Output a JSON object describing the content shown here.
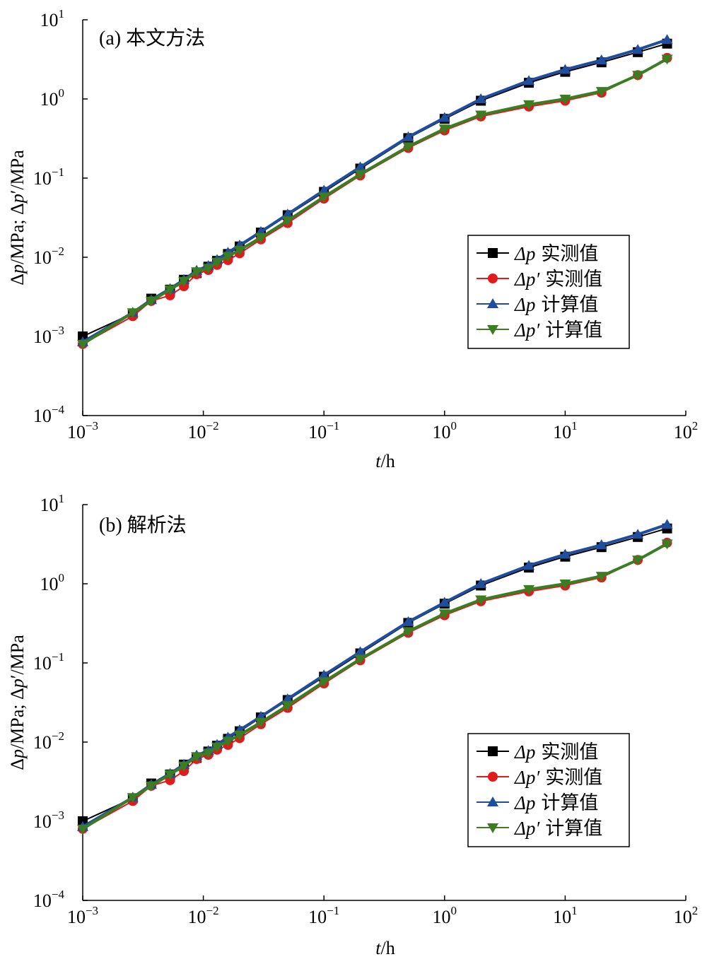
{
  "chart_data": [
    {
      "type": "scatter",
      "scale": {
        "x": "log",
        "y": "log"
      },
      "title": "(a) 本文方法",
      "xlabel": {
        "italic": "t",
        "rest": "/h"
      },
      "ylabel": {
        "parts": [
          "Δ",
          "p",
          "/MPa; Δ",
          "p",
          "′/MPa"
        ]
      },
      "xlim": [
        0.001,
        100
      ],
      "ylim": [
        0.0001,
        10
      ],
      "x_ticks": [
        {
          "base": "10",
          "exp": "−3"
        },
        {
          "base": "10",
          "exp": "−2"
        },
        {
          "base": "10",
          "exp": "−1"
        },
        {
          "base": "10",
          "exp": "0"
        },
        {
          "base": "10",
          "exp": "1"
        },
        {
          "base": "10",
          "exp": "2"
        }
      ],
      "y_ticks": [
        {
          "base": "10",
          "exp": "−4"
        },
        {
          "base": "10",
          "exp": "−3"
        },
        {
          "base": "10",
          "exp": "−2"
        },
        {
          "base": "10",
          "exp": "−1"
        },
        {
          "base": "10",
          "exp": "0"
        },
        {
          "base": "10",
          "exp": "1"
        }
      ],
      "legend_position": "lower-right",
      "series": [
        {
          "name": "Δp 实测值",
          "legend": {
            "math": "Δp",
            "label": "实测值"
          },
          "color": "#000000",
          "marker": "square",
          "x": [
            0.001,
            0.0026,
            0.0037,
            0.0053,
            0.0069,
            0.0088,
            0.011,
            0.013,
            0.016,
            0.02,
            0.03,
            0.05,
            0.1,
            0.2,
            0.5,
            1,
            2,
            5,
            10,
            20,
            40,
            70
          ],
          "y": [
            0.001,
            0.00195,
            0.003,
            0.0039,
            0.0052,
            0.0063,
            0.0076,
            0.009,
            0.011,
            0.0137,
            0.0205,
            0.034,
            0.067,
            0.132,
            0.32,
            0.56,
            0.95,
            1.6,
            2.2,
            2.9,
            3.9,
            5.0
          ]
        },
        {
          "name": "Δp′ 实测值",
          "legend": {
            "math": "Δp′",
            "label": "实测值"
          },
          "color": "#e31a1c",
          "marker": "circle",
          "x": [
            0.001,
            0.0026,
            0.0037,
            0.0053,
            0.0069,
            0.0088,
            0.011,
            0.013,
            0.016,
            0.02,
            0.03,
            0.05,
            0.1,
            0.2,
            0.5,
            1,
            2,
            5,
            10,
            20,
            40,
            70
          ],
          "y": [
            0.0008,
            0.0018,
            0.0028,
            0.0033,
            0.0043,
            0.0061,
            0.0069,
            0.008,
            0.0092,
            0.0112,
            0.0168,
            0.027,
            0.055,
            0.108,
            0.24,
            0.4,
            0.6,
            0.8,
            0.95,
            1.2,
            2.0,
            3.3
          ]
        },
        {
          "name": "Δp 计算值",
          "legend": {
            "math": "Δp",
            "label": "计算值"
          },
          "color": "#1f4e9e",
          "marker": "triangle-up",
          "x": [
            0.001,
            0.0026,
            0.0037,
            0.0053,
            0.0069,
            0.0088,
            0.011,
            0.013,
            0.016,
            0.02,
            0.03,
            0.05,
            0.1,
            0.2,
            0.5,
            1,
            2,
            5,
            10,
            20,
            40,
            70
          ],
          "y": [
            0.00085,
            0.002,
            0.0029,
            0.004,
            0.0052,
            0.0068,
            0.0078,
            0.0093,
            0.0115,
            0.0142,
            0.021,
            0.035,
            0.07,
            0.138,
            0.33,
            0.58,
            1.0,
            1.7,
            2.35,
            3.1,
            4.2,
            5.6
          ]
        },
        {
          "name": "Δp′ 计算值",
          "legend": {
            "math": "Δp′",
            "label": "计算值"
          },
          "color": "#3a7d22",
          "marker": "triangle-down",
          "x": [
            0.001,
            0.0026,
            0.0037,
            0.0053,
            0.0069,
            0.0088,
            0.011,
            0.013,
            0.016,
            0.02,
            0.03,
            0.05,
            0.1,
            0.2,
            0.5,
            1,
            2,
            5,
            10,
            20,
            40,
            70
          ],
          "y": [
            0.0008,
            0.002,
            0.0028,
            0.0039,
            0.005,
            0.0066,
            0.0073,
            0.0087,
            0.0103,
            0.0123,
            0.0178,
            0.029,
            0.058,
            0.112,
            0.25,
            0.42,
            0.63,
            0.85,
            1.0,
            1.25,
            2.0,
            3.2
          ]
        }
      ]
    },
    {
      "type": "scatter",
      "scale": {
        "x": "log",
        "y": "log"
      },
      "title": "(b) 解析法",
      "xlabel": {
        "italic": "t",
        "rest": "/h"
      },
      "ylabel": {
        "parts": [
          "Δ",
          "p",
          "/MPa; Δ",
          "p",
          "′/MPa"
        ]
      },
      "xlim": [
        0.001,
        100
      ],
      "ylim": [
        0.0001,
        10
      ],
      "x_ticks": [
        {
          "base": "10",
          "exp": "−3"
        },
        {
          "base": "10",
          "exp": "−2"
        },
        {
          "base": "10",
          "exp": "−1"
        },
        {
          "base": "10",
          "exp": "0"
        },
        {
          "base": "10",
          "exp": "1"
        },
        {
          "base": "10",
          "exp": "2"
        }
      ],
      "y_ticks": [
        {
          "base": "10",
          "exp": "−4"
        },
        {
          "base": "10",
          "exp": "−3"
        },
        {
          "base": "10",
          "exp": "−2"
        },
        {
          "base": "10",
          "exp": "−1"
        },
        {
          "base": "10",
          "exp": "0"
        },
        {
          "base": "10",
          "exp": "1"
        }
      ],
      "legend_position": "lower-right",
      "series": [
        {
          "name": "Δp 实测值",
          "legend": {
            "math": "Δp",
            "label": "实测值"
          },
          "color": "#000000",
          "marker": "square",
          "x": [
            0.001,
            0.0026,
            0.0037,
            0.0053,
            0.0069,
            0.0088,
            0.011,
            0.013,
            0.016,
            0.02,
            0.03,
            0.05,
            0.1,
            0.2,
            0.5,
            1,
            2,
            5,
            10,
            20,
            40,
            70
          ],
          "y": [
            0.001,
            0.00195,
            0.003,
            0.0039,
            0.0052,
            0.0063,
            0.0076,
            0.009,
            0.011,
            0.0137,
            0.0205,
            0.034,
            0.067,
            0.132,
            0.32,
            0.56,
            0.95,
            1.6,
            2.2,
            2.9,
            3.9,
            5.0
          ]
        },
        {
          "name": "Δp′ 实测值",
          "legend": {
            "math": "Δp′",
            "label": "实测值"
          },
          "color": "#e31a1c",
          "marker": "circle",
          "x": [
            0.001,
            0.0026,
            0.0037,
            0.0053,
            0.0069,
            0.0088,
            0.011,
            0.013,
            0.016,
            0.02,
            0.03,
            0.05,
            0.1,
            0.2,
            0.5,
            1,
            2,
            5,
            10,
            20,
            40,
            70
          ],
          "y": [
            0.0008,
            0.0018,
            0.0028,
            0.0033,
            0.0043,
            0.0061,
            0.0069,
            0.008,
            0.0092,
            0.0112,
            0.0168,
            0.027,
            0.055,
            0.108,
            0.24,
            0.4,
            0.6,
            0.8,
            0.95,
            1.2,
            2.0,
            3.3
          ]
        },
        {
          "name": "Δp 计算值",
          "legend": {
            "math": "Δp",
            "label": "计算值"
          },
          "color": "#1f4e9e",
          "marker": "triangle-up",
          "x": [
            0.001,
            0.0026,
            0.0037,
            0.0053,
            0.0069,
            0.0088,
            0.011,
            0.013,
            0.016,
            0.02,
            0.03,
            0.05,
            0.1,
            0.2,
            0.5,
            1,
            2,
            5,
            10,
            20,
            40,
            70
          ],
          "y": [
            0.00085,
            0.002,
            0.0029,
            0.004,
            0.0052,
            0.0068,
            0.0078,
            0.0093,
            0.0115,
            0.0142,
            0.021,
            0.035,
            0.07,
            0.138,
            0.33,
            0.58,
            1.0,
            1.7,
            2.35,
            3.1,
            4.2,
            5.6
          ]
        },
        {
          "name": "Δp′ 计算值",
          "legend": {
            "math": "Δp′",
            "label": "计算值"
          },
          "color": "#3a7d22",
          "marker": "triangle-down",
          "x": [
            0.001,
            0.0026,
            0.0037,
            0.0053,
            0.0069,
            0.0088,
            0.011,
            0.013,
            0.016,
            0.02,
            0.03,
            0.05,
            0.1,
            0.2,
            0.5,
            1,
            2,
            5,
            10,
            20,
            40,
            70
          ],
          "y": [
            0.0008,
            0.002,
            0.0028,
            0.0039,
            0.005,
            0.0066,
            0.0073,
            0.0087,
            0.0103,
            0.0123,
            0.0178,
            0.029,
            0.058,
            0.112,
            0.25,
            0.42,
            0.63,
            0.85,
            1.0,
            1.25,
            2.0,
            3.2
          ]
        }
      ]
    }
  ]
}
